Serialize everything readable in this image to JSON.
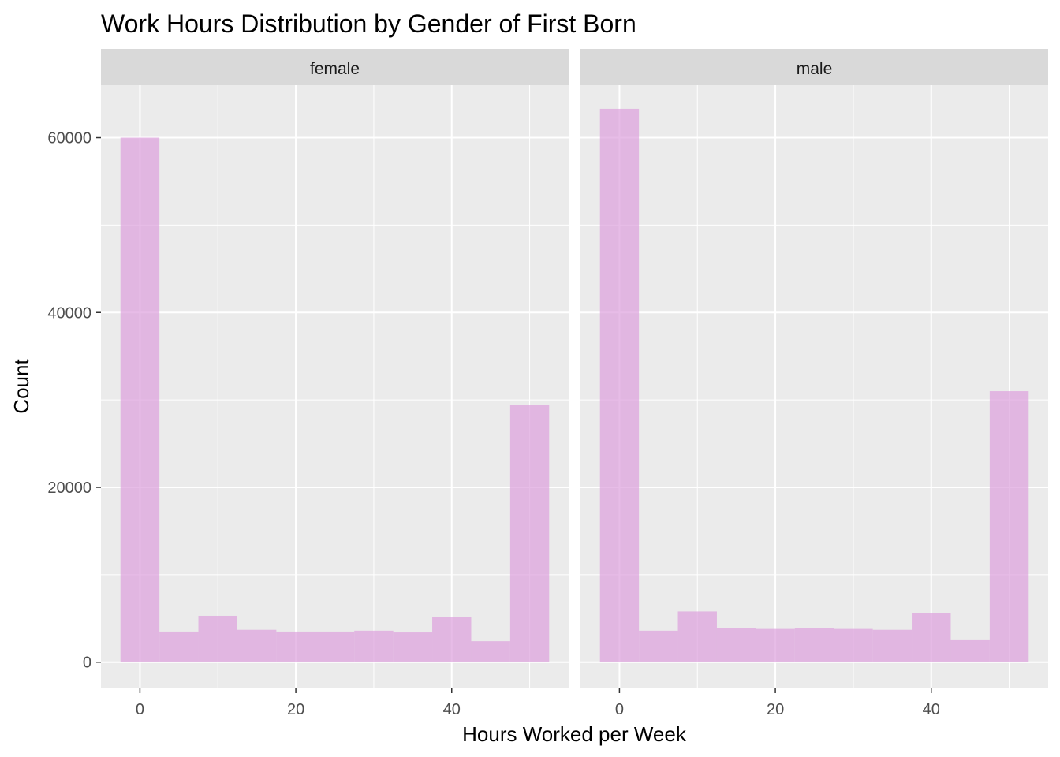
{
  "chart_data": {
    "type": "bar",
    "title": "Work Hours Distribution by Gender of First Born",
    "xlabel": "Hours Worked per Week",
    "ylabel": "Count",
    "xlim": [
      -5,
      55
    ],
    "ylim": [
      -3000,
      66000
    ],
    "x_ticks": [
      "0",
      "20",
      "40"
    ],
    "y_ticks": [
      "0",
      "20000",
      "40000",
      "60000"
    ],
    "bin_width": 5,
    "bin_centers": [
      0,
      5,
      10,
      15,
      20,
      25,
      30,
      35,
      40,
      45,
      50
    ],
    "fill_color": "#DDA0DD",
    "fill_opacity": 0.7,
    "grid": true,
    "panel_background": "#EBEBEB",
    "strip_background": "#D9D9D9",
    "facets": [
      {
        "label": "female",
        "values": [
          60000,
          3500,
          5300,
          3700,
          3500,
          3500,
          3600,
          3400,
          5200,
          2400,
          29400
        ]
      },
      {
        "label": "male",
        "values": [
          63300,
          3600,
          5800,
          3900,
          3800,
          3900,
          3800,
          3700,
          5600,
          2600,
          31000
        ]
      }
    ]
  }
}
